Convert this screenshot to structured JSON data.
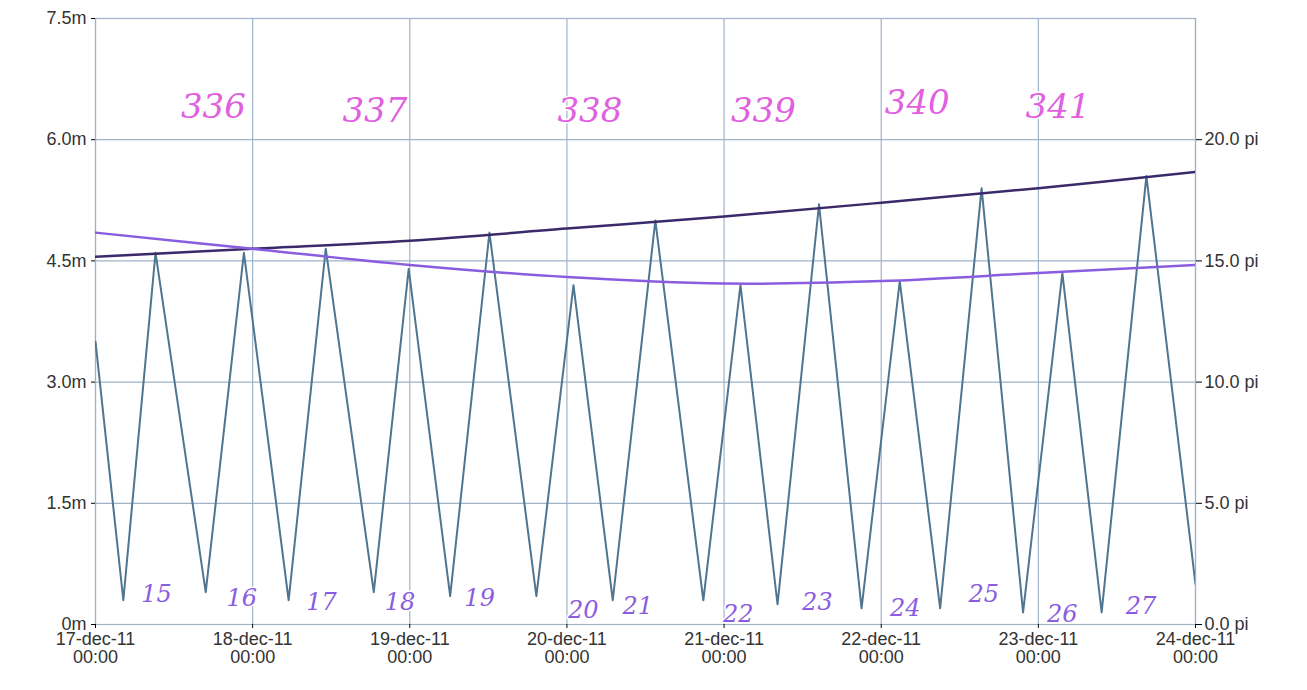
{
  "chart_data": {
    "type": "line",
    "grid": true,
    "xlim": [
      "2011-12-17T00:00",
      "2011-12-24T00:00"
    ],
    "xticks": [
      {
        "value": "2011-12-17T00:00",
        "label": "17-dec-11\n00:00"
      },
      {
        "value": "2011-12-18T00:00",
        "label": "18-dec-11\n00:00"
      },
      {
        "value": "2011-12-19T00:00",
        "label": "19-dec-11\n00:00"
      },
      {
        "value": "2011-12-20T00:00",
        "label": "20-dec-11\n00:00"
      },
      {
        "value": "2011-12-21T00:00",
        "label": "21-dec-11\n00:00"
      },
      {
        "value": "2011-12-22T00:00",
        "label": "22-dec-11\n00:00"
      },
      {
        "value": "2011-12-23T00:00",
        "label": "23-dec-11\n00:00"
      },
      {
        "value": "2011-12-24T00:00",
        "label": "24-dec-11\n00:00"
      }
    ],
    "ylim": [
      0,
      7.5
    ],
    "yticks": [
      {
        "value": 0,
        "label": "0m"
      },
      {
        "value": 1.5,
        "label": "1.5m"
      },
      {
        "value": 3,
        "label": "3.0m"
      },
      {
        "value": 4.5,
        "label": "4.5m"
      },
      {
        "value": 6,
        "label": "6.0m"
      },
      {
        "value": 7.5,
        "label": "7.5m"
      }
    ],
    "y2lim": [
      0,
      25
    ],
    "y2ticks": [
      {
        "value": 0,
        "label": "0.0 pi"
      },
      {
        "value": 5,
        "label": "5.0 pi"
      },
      {
        "value": 10,
        "label": "10.0 pi"
      },
      {
        "value": 15,
        "label": "15.0 pi"
      },
      {
        "value": 20,
        "label": "20.0 pi"
      }
    ],
    "series": [
      {
        "color": "#4f7590",
        "line_style": "solid",
        "x": [
          "2011-12-17T00:00",
          "2011-12-17T04:15",
          "2011-12-17T09:10",
          "2011-12-17T16:50",
          "2011-12-17T22:40",
          "2011-12-18T05:30",
          "2011-12-18T11:10",
          "2011-12-18T18:30",
          "2011-12-18T23:50",
          "2011-12-19T06:10",
          "2011-12-19T12:10",
          "2011-12-19T19:20",
          "2011-12-20T01:00",
          "2011-12-20T07:00",
          "2011-12-20T13:30",
          "2011-12-20T20:50",
          "2011-12-21T02:30",
          "2011-12-21T08:10",
          "2011-12-21T14:30",
          "2011-12-21T21:00",
          "2011-12-22T02:50",
          "2011-12-22T09:00",
          "2011-12-22T15:20",
          "2011-12-22T21:40",
          "2011-12-23T03:40",
          "2011-12-23T09:40",
          "2011-12-23T16:30",
          "2011-12-24T00:00"
        ],
        "values": [
          3.5,
          0.3,
          4.6,
          0.4,
          4.6,
          0.3,
          4.65,
          0.4,
          4.4,
          0.35,
          4.85,
          0.35,
          4.2,
          0.3,
          5.0,
          0.3,
          4.2,
          0.25,
          5.2,
          0.2,
          4.25,
          0.2,
          5.4,
          0.15,
          4.35,
          0.15,
          5.55,
          0.5
        ]
      },
      {
        "color": "#3a2a6a",
        "line_style": "solid",
        "x": [
          "2011-12-17T00:00",
          "2011-12-18T00:00",
          "2011-12-19T00:00",
          "2011-12-20T00:00",
          "2011-12-21T00:00",
          "2011-12-22T00:00",
          "2011-12-23T00:00",
          "2011-12-24T00:00"
        ],
        "values": [
          4.55,
          4.65,
          4.75,
          4.9,
          5.05,
          5.22,
          5.4,
          5.6
        ]
      },
      {
        "color": "#8a5ce0",
        "line_style": "solid",
        "x": [
          "2011-12-17T00:00",
          "2011-12-18T00:00",
          "2011-12-19T00:00",
          "2011-12-20T00:00",
          "2011-12-21T00:00",
          "2011-12-22T00:00",
          "2011-12-23T00:00",
          "2011-12-24T00:00"
        ],
        "values": [
          4.85,
          4.65,
          4.45,
          4.3,
          4.22,
          4.25,
          4.35,
          4.45
        ]
      }
    ],
    "annotations": [
      {
        "text": "336",
        "x": "2011-12-17T18:00",
        "y": 6.4,
        "color": "#e060e0"
      },
      {
        "text": "337",
        "x": "2011-12-18T18:40",
        "y": 6.35,
        "color": "#e060e0"
      },
      {
        "text": "338",
        "x": "2011-12-20T03:30",
        "y": 6.35,
        "color": "#e060e0"
      },
      {
        "text": "339",
        "x": "2011-12-21T06:00",
        "y": 6.35,
        "color": "#e060e0"
      },
      {
        "text": "340",
        "x": "2011-12-22T05:30",
        "y": 6.45,
        "color": "#e060e0"
      },
      {
        "text": "341",
        "x": "2011-12-23T03:00",
        "y": 6.4,
        "color": "#e060e0"
      },
      {
        "text": "15",
        "x": "2011-12-17T09:20",
        "y": 0.3,
        "color": "#8a5ce0"
      },
      {
        "text": "16",
        "x": "2011-12-17T22:20",
        "y": 0.25,
        "color": "#8a5ce0"
      },
      {
        "text": "17",
        "x": "2011-12-18T10:30",
        "y": 0.2,
        "color": "#8a5ce0"
      },
      {
        "text": "18",
        "x": "2011-12-18T22:30",
        "y": 0.2,
        "color": "#8a5ce0"
      },
      {
        "text": "19",
        "x": "2011-12-19T10:40",
        "y": 0.25,
        "color": "#8a5ce0"
      },
      {
        "text": "20",
        "x": "2011-12-20T02:30",
        "y": 0.1,
        "color": "#8a5ce0"
      },
      {
        "text": "21",
        "x": "2011-12-20T10:50",
        "y": 0.15,
        "color": "#8a5ce0"
      },
      {
        "text": "22",
        "x": "2011-12-21T02:10",
        "y": 0.05,
        "color": "#8a5ce0"
      },
      {
        "text": "23",
        "x": "2011-12-21T14:15",
        "y": 0.2,
        "color": "#8a5ce0"
      },
      {
        "text": "24",
        "x": "2011-12-22T03:40",
        "y": 0.12,
        "color": "#8a5ce0"
      },
      {
        "text": "25",
        "x": "2011-12-22T15:40",
        "y": 0.3,
        "color": "#8a5ce0"
      },
      {
        "text": "26",
        "x": "2011-12-23T03:40",
        "y": 0.05,
        "color": "#8a5ce0"
      },
      {
        "text": "27",
        "x": "2011-12-23T15:40",
        "y": 0.15,
        "color": "#8a5ce0"
      }
    ]
  }
}
